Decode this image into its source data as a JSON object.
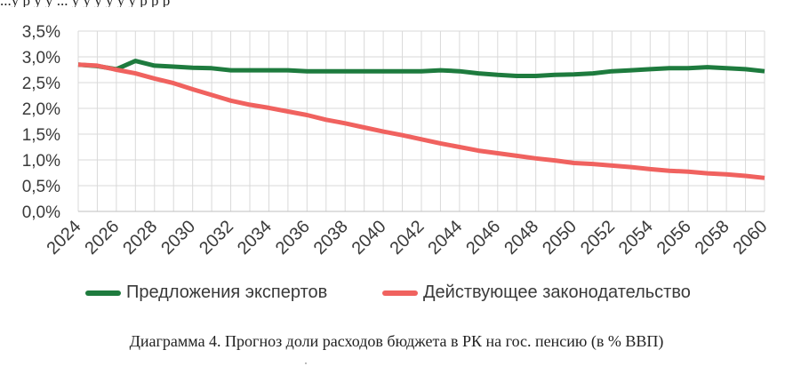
{
  "page": {
    "top_fragment": "...у р      у   у        ...     у   у у        у      у    у   р          р       р",
    "caption": "Диаграмма 4. Прогноз доли расходов бюджета в РК на гос. пенсию (в % ВВП)"
  },
  "colors": {
    "green": "#1E7B3E",
    "red": "#F0625F",
    "grid": "#d9d9d9",
    "text": "#3a3a3a"
  },
  "chart_data": {
    "type": "line",
    "title": "",
    "xlabel": "",
    "ylabel": "",
    "x": [
      2024,
      2025,
      2026,
      2027,
      2028,
      2029,
      2030,
      2031,
      2032,
      2033,
      2034,
      2035,
      2036,
      2037,
      2038,
      2039,
      2040,
      2041,
      2042,
      2043,
      2044,
      2045,
      2046,
      2047,
      2048,
      2049,
      2050,
      2051,
      2052,
      2053,
      2054,
      2055,
      2056,
      2057,
      2058,
      2059,
      2060
    ],
    "xlim": [
      2024,
      2060
    ],
    "ylim": [
      0,
      3.5
    ],
    "x_tick_labels": [
      "2024",
      "2026",
      "2028",
      "2030",
      "2032",
      "2034",
      "2036",
      "2038",
      "2040",
      "2042",
      "2044",
      "2046",
      "2048",
      "2050",
      "2052",
      "2054",
      "2056",
      "2058",
      "2060"
    ],
    "y_tick_labels": [
      "0,0%",
      "0,5%",
      "1,0%",
      "1,5%",
      "2,0%",
      "2,5%",
      "3,0%",
      "3,5%"
    ],
    "grid": true,
    "legend_position": "bottom",
    "series": [
      {
        "name": "Предложения экспертов",
        "color": "#1E7B3E",
        "values": [
          2.85,
          2.82,
          2.76,
          2.92,
          2.83,
          2.81,
          2.79,
          2.78,
          2.74,
          2.74,
          2.74,
          2.74,
          2.72,
          2.72,
          2.72,
          2.72,
          2.72,
          2.72,
          2.72,
          2.74,
          2.72,
          2.68,
          2.65,
          2.63,
          2.63,
          2.65,
          2.66,
          2.68,
          2.72,
          2.74,
          2.76,
          2.78,
          2.78,
          2.8,
          2.78,
          2.76,
          2.72
        ]
      },
      {
        "name": "Действующее законодательство",
        "color": "#F0625F",
        "values": [
          2.85,
          2.83,
          2.75,
          2.68,
          2.58,
          2.49,
          2.37,
          2.26,
          2.15,
          2.07,
          2.01,
          1.94,
          1.87,
          1.78,
          1.71,
          1.63,
          1.55,
          1.48,
          1.4,
          1.32,
          1.25,
          1.18,
          1.13,
          1.08,
          1.03,
          0.99,
          0.94,
          0.92,
          0.89,
          0.86,
          0.82,
          0.79,
          0.77,
          0.74,
          0.72,
          0.69,
          0.65
        ]
      }
    ]
  }
}
